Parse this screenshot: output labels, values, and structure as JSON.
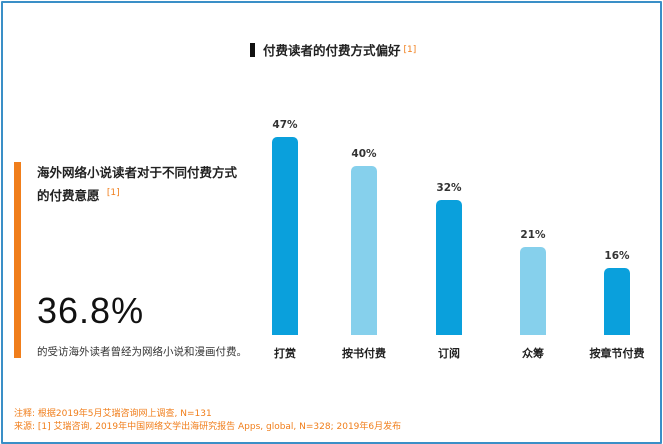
{
  "chart_data": {
    "type": "bar",
    "title": "付费读者的付费方式偏好",
    "title_ref": "[1]",
    "categories": [
      "打赏",
      "按书付费",
      "订阅",
      "众筹",
      "按章节付费"
    ],
    "values": [
      47,
      40,
      32,
      21,
      16
    ],
    "value_labels": [
      "47%",
      "40%",
      "32%",
      "21%",
      "16%"
    ],
    "bar_colors": [
      "#0aa0dc",
      "#86d0ec",
      "#0aa0dc",
      "#86d0ec",
      "#0aa0dc"
    ],
    "xlabel": "",
    "ylabel": "",
    "ylim": [
      0,
      50
    ],
    "grid": false,
    "legend": "none"
  },
  "sidebar": {
    "headline": "海外网络小说读者对于不同付费方式的付费意愿",
    "headline_ref": "[1]",
    "stat_value": "36.8%",
    "stat_description": "的受访海外读者曾经为网络小说和漫画付费。"
  },
  "footer": {
    "note": "注释: 根据2019年5月艾瑞咨询网上调查, N=131",
    "source": "来源: [1] 艾瑞咨询, 2019年中国网络文学出海研究报告 Apps, global, N=328; 2019年6月发布"
  },
  "colors": {
    "accent": "#f07e1b",
    "bar_dark": "#0aa0dc",
    "bar_light": "#86d0ec",
    "frame": "#3a8fc7"
  }
}
